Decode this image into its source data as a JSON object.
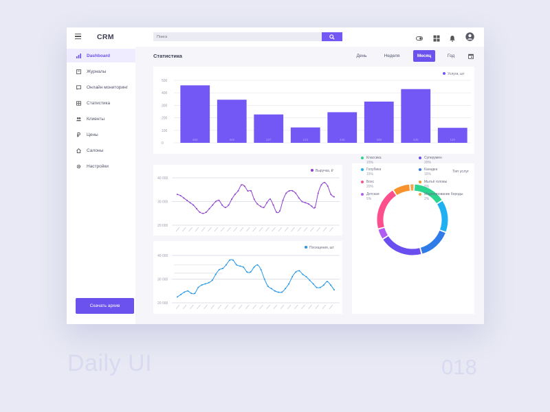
{
  "app": {
    "brand": "CRM"
  },
  "search": {
    "placeholder": "Поиск"
  },
  "topbar_icons": [
    "toggle-icon",
    "grid-icon",
    "bell-icon",
    "user-avatar-icon"
  ],
  "sidebar": {
    "items": [
      {
        "label": "Dashboard",
        "icon": "bar-chart-icon",
        "active": true
      },
      {
        "label": "Журналы",
        "icon": "journal-icon"
      },
      {
        "label": "Онлайн мониторинг",
        "icon": "monitor-icon"
      },
      {
        "label": "Статистика",
        "icon": "table-icon"
      },
      {
        "label": "Клиенты",
        "icon": "users-icon"
      },
      {
        "label": "Цены",
        "icon": "ruble-icon"
      },
      {
        "label": "Салоны",
        "icon": "home-icon"
      },
      {
        "label": "Настройки",
        "icon": "gear-icon"
      }
    ],
    "download_label": "Скачать архив"
  },
  "main": {
    "title": "Статистика",
    "periods": [
      {
        "label": "День"
      },
      {
        "label": "Неделя"
      },
      {
        "label": "Месяц",
        "active": true
      },
      {
        "label": "Год"
      }
    ]
  },
  "colors": {
    "accent": "#6b52ef",
    "bar": "#7358f5",
    "revenue_line": "#8e3fd0",
    "visits_line": "#2196e8"
  },
  "chart_data": [
    {
      "type": "bar",
      "legend": "Услуги, шт",
      "categories": [
        "1",
        "2",
        "3",
        "4",
        "5",
        "6",
        "7",
        "8"
      ],
      "values": [
        460,
        345,
        227,
        123,
        245,
        330,
        430,
        120
      ],
      "ylim": [
        0,
        500
      ],
      "yticks": [
        "0",
        "100",
        "200",
        "300",
        "400",
        "500"
      ]
    },
    {
      "type": "line",
      "legend": "Выручка, ₽",
      "yticks": [
        "20 000",
        "30 000",
        "40 000"
      ],
      "ylim": [
        20000,
        40000
      ],
      "values": [
        33000,
        32500,
        31500,
        30500,
        29500,
        28500,
        27000,
        25500,
        25000,
        25500,
        27000,
        28500,
        30000,
        30500,
        28500,
        27500,
        28500,
        31000,
        33000,
        34500,
        37000,
        36500,
        34500,
        34500,
        31000,
        29000,
        28000,
        27500,
        29500,
        31000,
        28500,
        25500,
        26000,
        30500,
        33500,
        34500,
        34500,
        33500,
        31500,
        30000,
        29500,
        29000,
        28000,
        27500,
        33500,
        37000,
        38000,
        36500,
        33000,
        32000
      ]
    },
    {
      "type": "line",
      "legend": "Посещения, шт",
      "yticks": [
        "20 000",
        "30 000",
        "40 000"
      ],
      "ylim": [
        20000,
        40000
      ],
      "values": [
        22500,
        23500,
        24500,
        25000,
        24000,
        24000,
        26500,
        27500,
        28000,
        28500,
        29500,
        32000,
        34000,
        34500,
        36000,
        38000,
        38000,
        36000,
        35500,
        35000,
        33000,
        33000,
        35000,
        36000,
        34000,
        30000,
        27000,
        26000,
        25000,
        24500,
        24500,
        26000,
        28000,
        31000,
        33000,
        33500,
        32000,
        31000,
        29500,
        28000,
        26500,
        26500,
        27500,
        29000,
        27500,
        25500
      ]
    },
    {
      "type": "pie",
      "title": "Тип услуг",
      "series": [
        {
          "name": "Классика",
          "value": 15,
          "label": "15%",
          "color": "#2bd48f"
        },
        {
          "name": "Голубика",
          "value": 15,
          "label": "15%",
          "color": "#1fb0f3"
        },
        {
          "name": "Боxс",
          "value": 20,
          "label": "20%",
          "color": "#fe4f8d"
        },
        {
          "name": "Детская",
          "value": 5,
          "label": "5%",
          "color": "#b15cf3"
        },
        {
          "name": "Суперумен",
          "value": 20,
          "label": "20%",
          "color": "#6a4ef0"
        },
        {
          "name": "Канадка",
          "value": 15,
          "label": "15%",
          "color": "#2f7be8"
        },
        {
          "name": "Мытьё головы",
          "value": 8,
          "label": "8%",
          "color": "#f7922d"
        },
        {
          "name": "Моделирование бороды",
          "value": 2,
          "label": "2%",
          "color": "#f4a34f"
        }
      ]
    }
  ],
  "footer": {
    "left": "Daily UI",
    "right": "018"
  }
}
